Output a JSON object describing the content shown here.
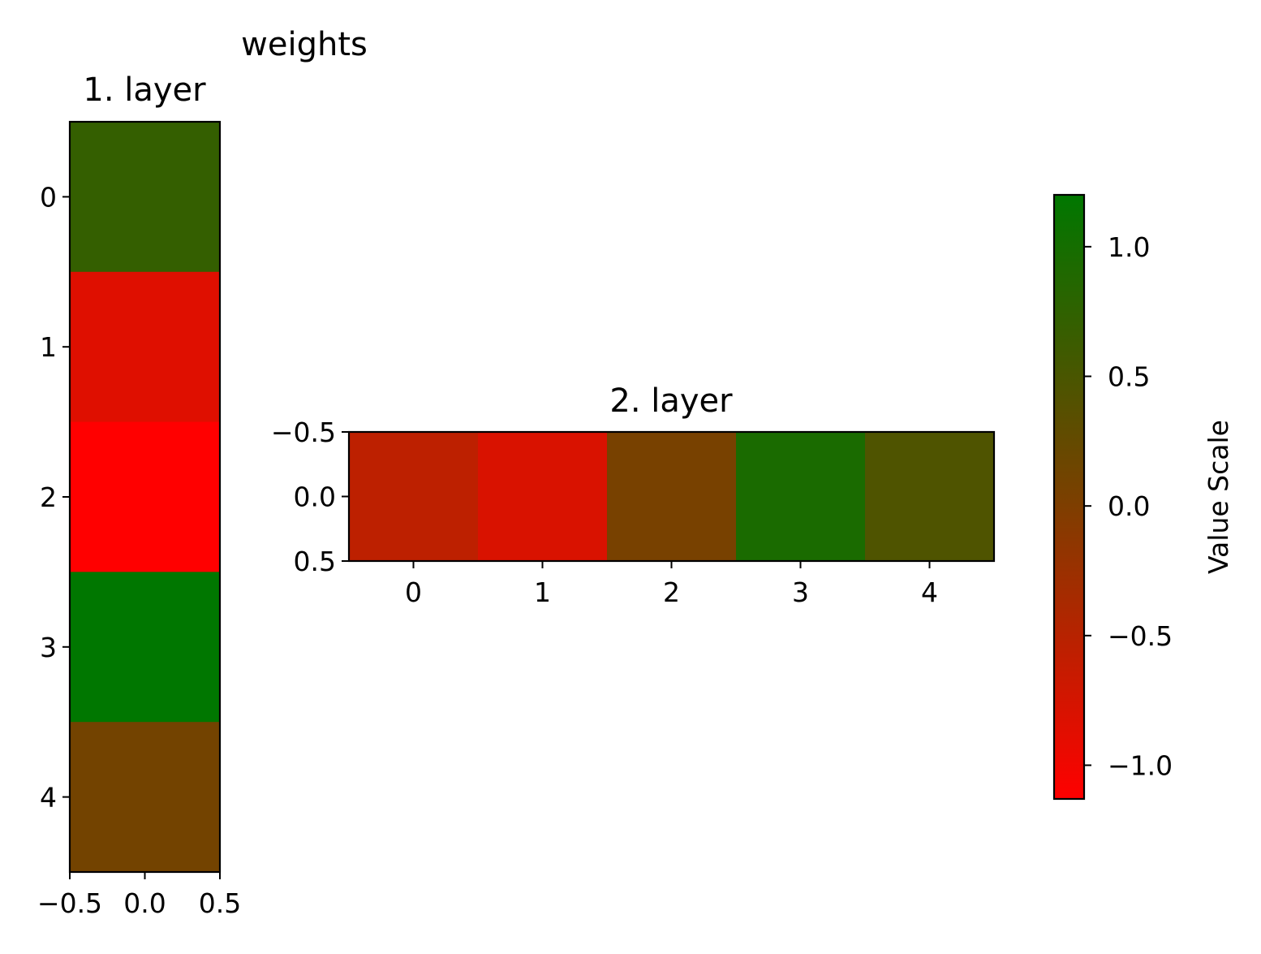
{
  "chart_data": {
    "type": "heatmap",
    "suptitle": "weights",
    "colormap": {
      "stops": [
        "#ff0000",
        "#7a4000",
        "#007700"
      ],
      "vmin": -1.13,
      "vmax": 1.2
    },
    "panels": [
      {
        "title": "1. layer",
        "rows": 5,
        "cols": 1,
        "values": [
          [
            0.7
          ],
          [
            -0.85
          ],
          [
            -1.13
          ],
          [
            1.2
          ],
          [
            0.1
          ]
        ],
        "xticks": [
          "−0.5",
          "0.0",
          "0.5"
        ],
        "yticks": [
          "0",
          "1",
          "2",
          "3",
          "4"
        ]
      },
      {
        "title": "2. layer",
        "rows": 1,
        "cols": 5,
        "values": [
          [
            -0.55,
            -0.8,
            0.05,
            0.95,
            0.45
          ]
        ],
        "xticks": [
          "0",
          "1",
          "2",
          "3",
          "4"
        ],
        "yticks": [
          "−0.5",
          "0.0",
          "0.5"
        ]
      }
    ],
    "colorbar": {
      "label": "Value Scale",
      "ticks": [
        "1.0",
        "0.5",
        "0.0",
        "−0.5",
        "−1.0"
      ],
      "tick_values": [
        1.0,
        0.5,
        0.0,
        -0.5,
        -1.0
      ]
    }
  }
}
